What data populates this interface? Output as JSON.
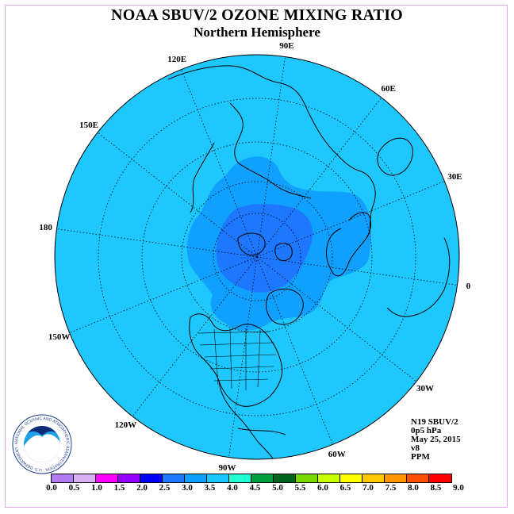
{
  "title": "NOAA SBUV/2 OZONE MIXING RATIO",
  "subtitle": "Northern Hemisphere",
  "longitude_labels": [
    "90E",
    "60E",
    "30E",
    "0",
    "30W",
    "60W",
    "90W",
    "120W",
    "150W",
    "180",
    "150E",
    "120E"
  ],
  "info": {
    "satellite": "N19 SBUV/2",
    "level": "0p5 hPa",
    "date": "May 25, 2015",
    "version": "v8",
    "units": "PPM"
  },
  "colorbar": {
    "ticks": [
      "0.0",
      "0.5",
      "1.0",
      "1.5",
      "2.0",
      "2.5",
      "3.0",
      "3.5",
      "4.0",
      "4.5",
      "5.0",
      "5.5",
      "6.0",
      "6.5",
      "7.0",
      "7.5",
      "8.0",
      "8.5",
      "9.0"
    ],
    "colors": [
      "#b07cf0",
      "#d8b0f4",
      "#ff00ff",
      "#9600ff",
      "#0000ff",
      "#1e78ff",
      "#0ea0ff",
      "#18c8ff",
      "#22ffd2",
      "#00a040",
      "#006420",
      "#78d800",
      "#c8ff00",
      "#ffff00",
      "#ffc800",
      "#ff9600",
      "#ff5000",
      "#ff0000",
      "#8b4513"
    ]
  },
  "logo": {
    "text": "NOAA",
    "ring_text": "NATIONAL OCEANIC AND ATMOSPHERIC ADMINISTRATION · U.S. DEPARTMENT OF COMMERCE"
  },
  "colors": {
    "background_field": "#1ec8ff",
    "mid_field": "#10a0ff",
    "core_field": "#1e78ff",
    "frame": "#e6a7e6"
  }
}
